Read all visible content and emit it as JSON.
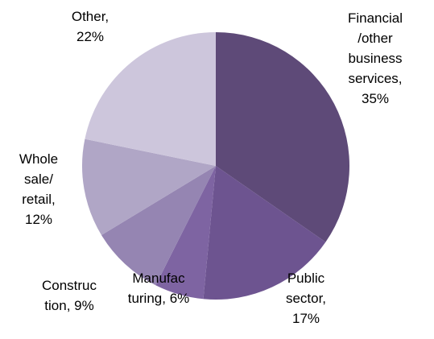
{
  "chart_data": {
    "type": "pie",
    "labels": [
      "Financial /other business services, 35%",
      "Public sector, 17%",
      "Manufac turing, 6%",
      "Construc tion, 9%",
      "Whole sale/ retail, 12%",
      "Other, 22%"
    ],
    "values": [
      35,
      17,
      6,
      9,
      12,
      22
    ],
    "colors": [
      "#5e4a78",
      "#6d5490",
      "#7e64a2",
      "#9585b2",
      "#b0a6c6",
      "#cdc6dc"
    ]
  }
}
